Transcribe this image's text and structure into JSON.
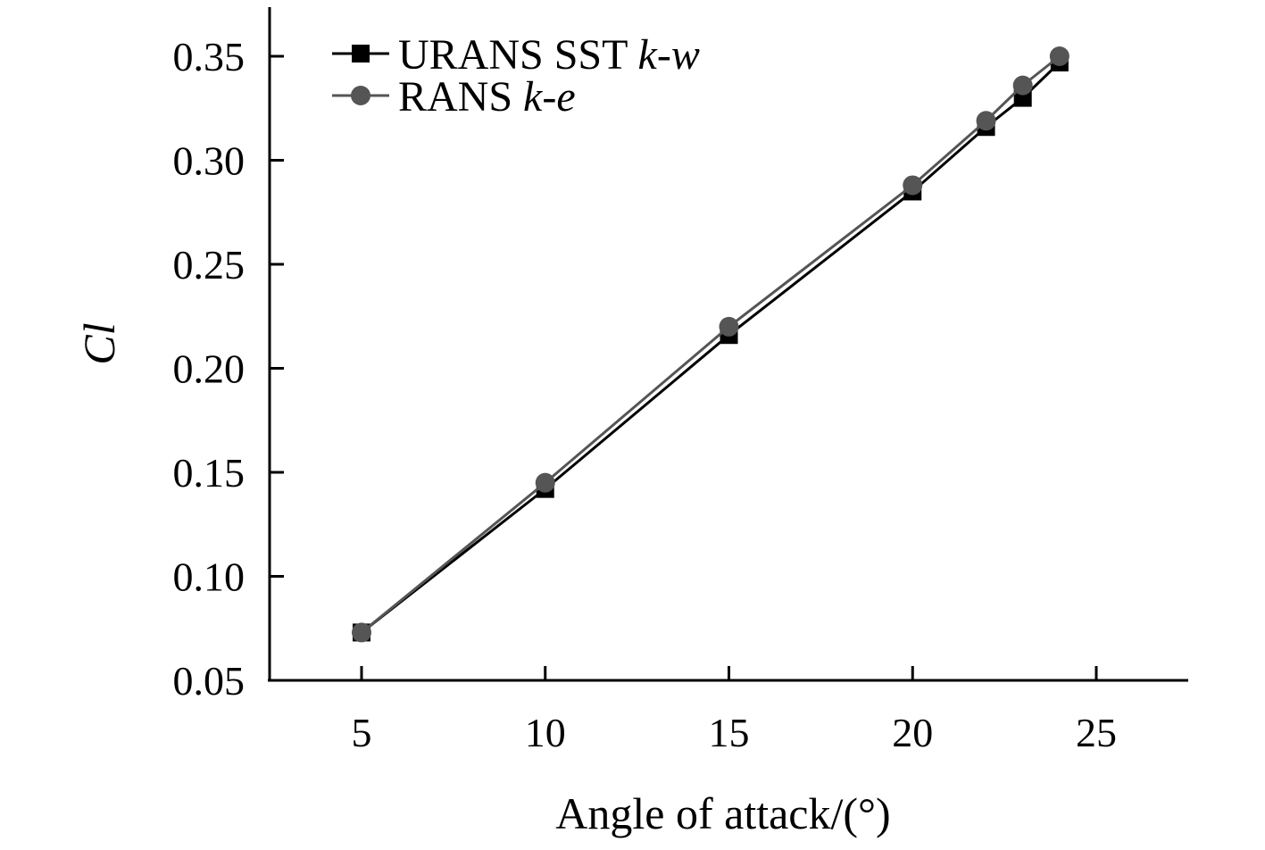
{
  "chart_data": {
    "type": "line",
    "xlabel": "Angle of attack/(°)",
    "ylabel": "Cl",
    "xlim": [
      2.5,
      27.5
    ],
    "ylim": [
      0.05,
      0.37
    ],
    "xticks": [
      5,
      10,
      15,
      20,
      25
    ],
    "yticks": [
      0.05,
      0.1,
      0.15,
      0.2,
      0.25,
      0.3,
      0.35
    ],
    "ytick_labels": [
      "0.05",
      "0.10",
      "0.15",
      "0.20",
      "0.25",
      "0.30",
      "0.35"
    ],
    "grid": false,
    "legend_position": "top-left",
    "series": [
      {
        "name": "URANS SST k-w",
        "name_plain": "URANS SST ",
        "name_italic": "k-w",
        "marker": "square",
        "color": "#000000",
        "x": [
          5,
          10,
          15,
          20,
          22,
          23,
          24
        ],
        "y": [
          0.073,
          0.142,
          0.216,
          0.285,
          0.316,
          0.33,
          0.347
        ]
      },
      {
        "name": "RANS k-e",
        "name_plain": "RANS ",
        "name_italic": "k-e",
        "marker": "circle",
        "color": "#555555",
        "x": [
          5,
          10,
          15,
          20,
          22,
          23,
          24
        ],
        "y": [
          0.073,
          0.145,
          0.22,
          0.288,
          0.319,
          0.336,
          0.35
        ]
      }
    ]
  }
}
